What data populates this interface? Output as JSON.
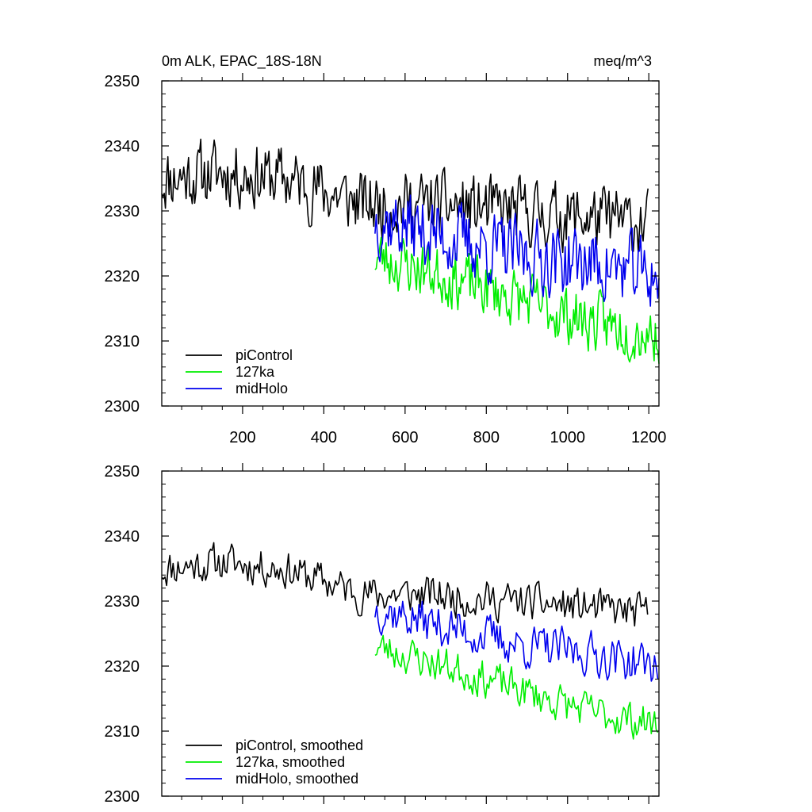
{
  "chart_data": [
    {
      "type": "line",
      "title_left": "0m ALK, EPAC_18S-18N",
      "title_right": "meq/m^3",
      "xlim": [
        1,
        1225
      ],
      "ylim": [
        2300,
        2350
      ],
      "yticks": [
        2300,
        2310,
        2320,
        2330,
        2340,
        2350
      ],
      "xticks": [
        200,
        400,
        600,
        800,
        1000,
        1200
      ],
      "xtick_labels": [
        "200",
        "400",
        "600",
        "800",
        "1000",
        "1200"
      ],
      "ytick_labels": [
        "2300",
        "2310",
        "2320",
        "2330",
        "2340",
        "2350"
      ],
      "legend": [
        "piControl",
        "127ka",
        "midHolo"
      ],
      "series": [
        {
          "name": "piControl",
          "color": "#000000",
          "x_start": 1,
          "x_end": 1200,
          "trend": [
            [
              1,
              2335
            ],
            [
              150,
              2336
            ],
            [
              300,
              2335
            ],
            [
              400,
              2333
            ],
            [
              500,
              2331
            ],
            [
              650,
              2331
            ],
            [
              850,
              2330
            ],
            [
              1050,
              2329
            ],
            [
              1200,
              2328
            ]
          ],
          "noise": 4.5,
          "seed": 11
        },
        {
          "name": "127ka",
          "color": "#00ee00",
          "x_start": 526,
          "x_end": 1225,
          "trend": [
            [
              526,
              2323
            ],
            [
              700,
              2320
            ],
            [
              900,
              2316
            ],
            [
              1050,
              2313
            ],
            [
              1225,
              2311
            ]
          ],
          "noise": 4.0,
          "seed": 23
        },
        {
          "name": "midHolo",
          "color": "#0000ee",
          "x_start": 526,
          "x_end": 1225,
          "trend": [
            [
              526,
              2329
            ],
            [
              700,
              2326
            ],
            [
              900,
              2323
            ],
            [
              1050,
              2322
            ],
            [
              1225,
              2320
            ]
          ],
          "noise": 5.0,
          "seed": 37
        }
      ]
    },
    {
      "type": "line",
      "xlim": [
        1,
        1225
      ],
      "ylim": [
        2300,
        2350
      ],
      "yticks": [
        2300,
        2310,
        2320,
        2330,
        2340,
        2350
      ],
      "ytick_labels": [
        "2300",
        "2310",
        "2320",
        "2330",
        "2340",
        "2350"
      ],
      "legend": [
        "piControl, smoothed",
        "127ka, smoothed",
        "midHolo, smoothed"
      ],
      "series": [
        {
          "name": "piControl, smoothed",
          "color": "#000000",
          "x_start": 1,
          "x_end": 1200,
          "trend": [
            [
              1,
              2335
            ],
            [
              150,
              2336
            ],
            [
              300,
              2335
            ],
            [
              400,
              2333
            ],
            [
              500,
              2331
            ],
            [
              650,
              2331
            ],
            [
              850,
              2330
            ],
            [
              1050,
              2329
            ],
            [
              1200,
              2328
            ]
          ],
          "noise": 2.6,
          "seed": 11
        },
        {
          "name": "127ka, smoothed",
          "color": "#00ee00",
          "x_start": 526,
          "x_end": 1225,
          "trend": [
            [
              526,
              2323
            ],
            [
              700,
              2320
            ],
            [
              900,
              2316
            ],
            [
              1050,
              2313
            ],
            [
              1225,
              2311
            ]
          ],
          "noise": 2.6,
          "seed": 23
        },
        {
          "name": "midHolo, smoothed",
          "color": "#0000ee",
          "x_start": 526,
          "x_end": 1225,
          "trend": [
            [
              526,
              2329
            ],
            [
              700,
              2326
            ],
            [
              900,
              2323
            ],
            [
              1050,
              2322
            ],
            [
              1225,
              2320
            ]
          ],
          "noise": 3.0,
          "seed": 37
        }
      ]
    }
  ]
}
